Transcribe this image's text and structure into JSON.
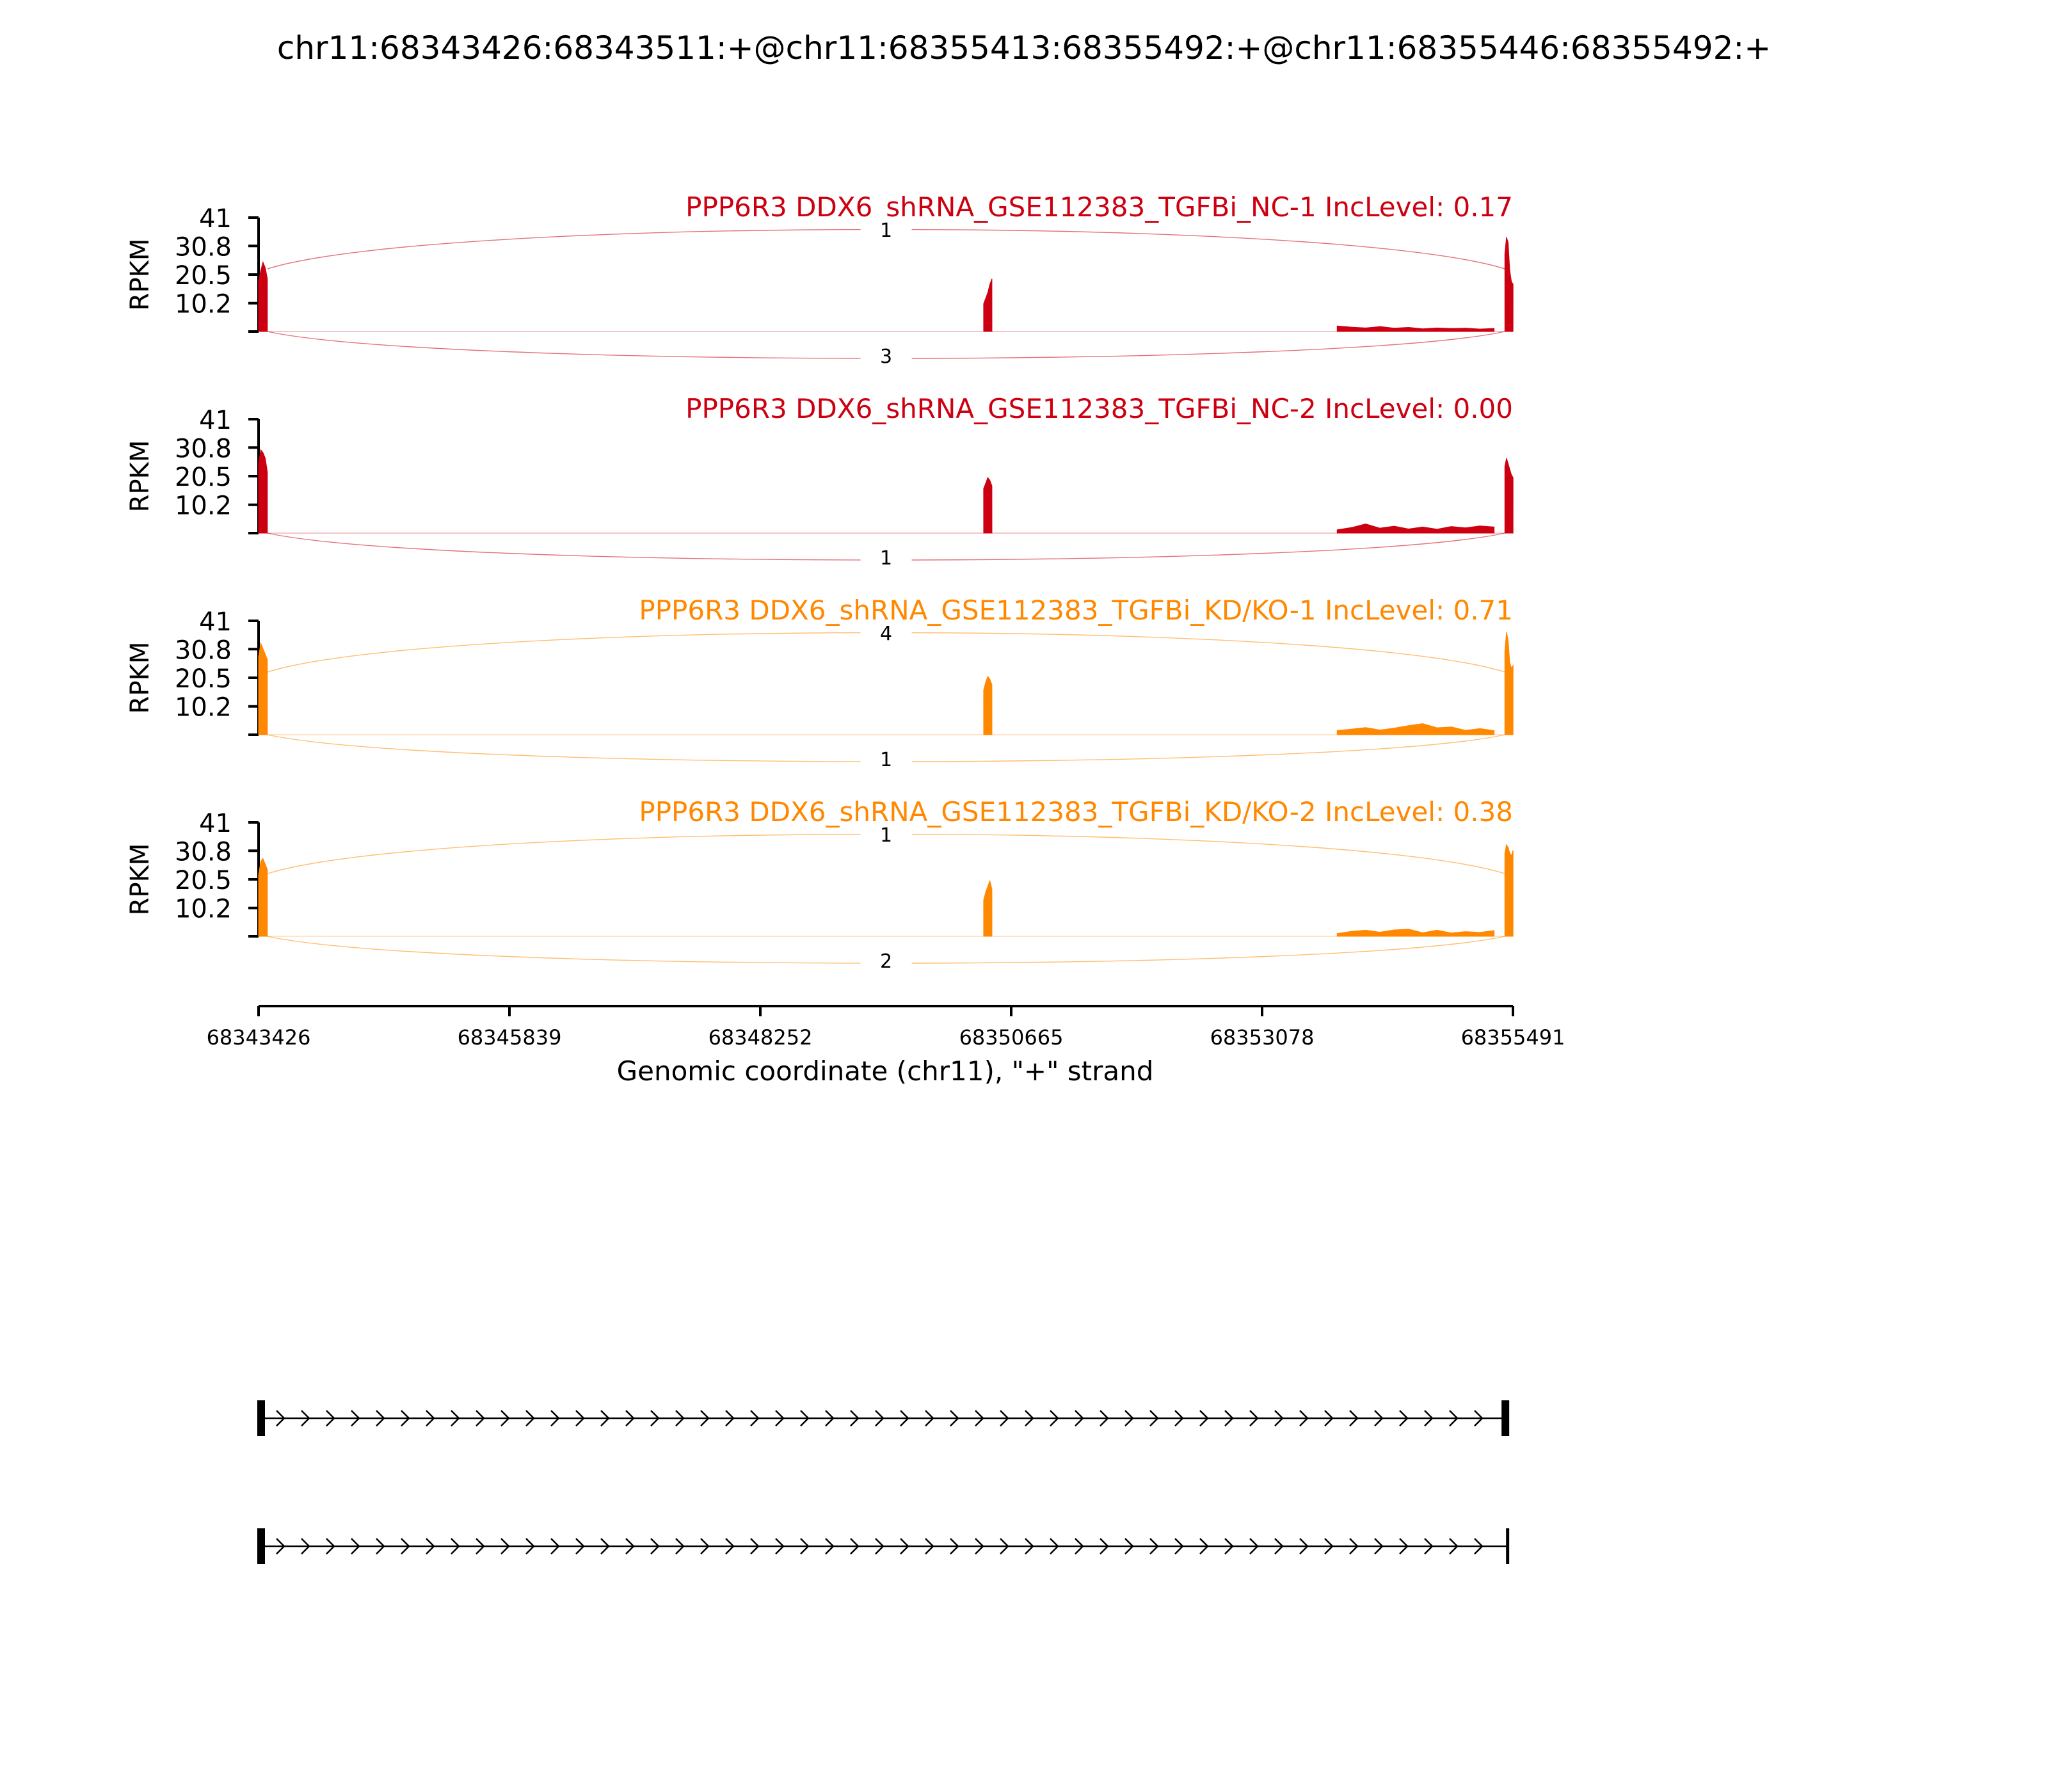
{
  "title": "chr11:68343426:68343511:+@chr11:68355413:68355492:+@chr11:68355446:68355492:+",
  "chart_data": {
    "type": "area",
    "tracks": [
      {
        "label": "PPP6R3 DDX6_shRNA_GSE112383_TGFBi_NC-1 IncLevel: 0.17",
        "color": "#cc0011",
        "group": "NC",
        "ylabel": "RPKM",
        "ylim": [
          0,
          41
        ],
        "yticks": [
          "41",
          "30.8",
          "20.5",
          "10.2"
        ],
        "junctions": {
          "upper": "1",
          "lower": "3"
        },
        "peaks": [
          {
            "x_start": 68343426,
            "x_end": 68343511,
            "values": [
              18,
              22,
              25,
              23,
              19
            ]
          },
          {
            "x_start": 68350400,
            "x_end": 68350480,
            "values": [
              10,
              12,
              14,
              17,
              19
            ]
          },
          {
            "x_start": 68353800,
            "x_end": 68355310,
            "values": [
              2,
              1.6,
              1.3,
              1.8,
              1.2,
              1.5,
              1,
              1.3,
              1.1,
              1.2,
              0.9,
              1.1
            ]
          },
          {
            "x_start": 68355413,
            "x_end": 68355492,
            "values": [
              28,
              34,
              32,
              22,
              18,
              17
            ]
          }
        ]
      },
      {
        "label": "PPP6R3 DDX6_shRNA_GSE112383_TGFBi_NC-2 IncLevel: 0.00",
        "color": "#cc0011",
        "group": "NC",
        "ylabel": "RPKM",
        "ylim": [
          0,
          41
        ],
        "yticks": [
          "41",
          "30.8",
          "20.5",
          "10.2"
        ],
        "junctions": {
          "upper": "",
          "lower": "1"
        },
        "peaks": [
          {
            "x_start": 68343426,
            "x_end": 68343511,
            "values": [
              25,
              30,
              29,
              27,
              22
            ]
          },
          {
            "x_start": 68350400,
            "x_end": 68350480,
            "values": [
              16,
              18,
              20,
              19,
              17
            ]
          },
          {
            "x_start": 68353800,
            "x_end": 68355310,
            "values": [
              1.2,
              2,
              3.3,
              1.8,
              2.5,
              1.5,
              2.2,
              1.4,
              2.4,
              1.9,
              2.6,
              2.2
            ]
          },
          {
            "x_start": 68355413,
            "x_end": 68355492,
            "values": [
              24,
              27,
              25,
              23,
              21,
              20
            ]
          }
        ]
      },
      {
        "label": "PPP6R3 DDX6_shRNA_GSE112383_TGFBi_KD/KO-1 IncLevel: 0.71",
        "color": "#ff8800",
        "group": "KD/KO",
        "ylabel": "RPKM",
        "ylim": [
          0,
          41
        ],
        "yticks": [
          "41",
          "30.8",
          "20.5",
          "10.2"
        ],
        "junctions": {
          "upper": "4",
          "lower": "1"
        },
        "peaks": [
          {
            "x_start": 68343426,
            "x_end": 68343511,
            "values": [
              28,
              33,
              31,
              29,
              27
            ]
          },
          {
            "x_start": 68350400,
            "x_end": 68350480,
            "values": [
              16,
              19,
              21,
              20,
              18
            ]
          },
          {
            "x_start": 68353800,
            "x_end": 68355310,
            "values": [
              1.5,
              2,
              2.6,
              1.7,
              2.4,
              3.3,
              4,
              2.5,
              2.8,
              1.6,
              2.2,
              1.5
            ]
          },
          {
            "x_start": 68355413,
            "x_end": 68355492,
            "values": [
              30,
              37,
              34,
              26,
              24,
              25
            ]
          }
        ]
      },
      {
        "label": "PPP6R3 DDX6_shRNA_GSE112383_TGFBi_KD/KO-2 IncLevel: 0.38",
        "color": "#ff8800",
        "group": "KD/KO",
        "ylabel": "RPKM",
        "ylim": [
          0,
          41
        ],
        "yticks": [
          "41",
          "30.8",
          "20.5",
          "10.2"
        ],
        "junctions": {
          "upper": "1",
          "lower": "2"
        },
        "peaks": [
          {
            "x_start": 68343426,
            "x_end": 68343511,
            "values": [
              22,
              27,
              28,
              26,
              24
            ]
          },
          {
            "x_start": 68350400,
            "x_end": 68350480,
            "values": [
              13,
              16,
              18,
              20,
              17
            ]
          },
          {
            "x_start": 68353800,
            "x_end": 68355310,
            "values": [
              1,
              1.8,
              2.2,
              1.5,
              2.3,
              2.6,
              1.3,
              2.2,
              1.2,
              1.7,
              1.4,
              2.1
            ]
          },
          {
            "x_start": 68355413,
            "x_end": 68355492,
            "values": [
              30,
              33,
              32,
              30,
              29,
              31
            ]
          }
        ]
      }
    ],
    "x_axis": {
      "label": "Genomic coordinate (chr11), \"+\" strand",
      "xlim": [
        68343426,
        68355491
      ],
      "ticks": [
        68343426,
        68345839,
        68348252,
        68350665,
        68353078,
        68355491
      ],
      "tick_labels": [
        "68343426",
        "68345839",
        "68348252",
        "68350665",
        "68353078",
        "68355491"
      ]
    },
    "isoforms": [
      {
        "exons": [
          [
            68343426,
            68343511
          ],
          [
            68355413,
            68355492
          ]
        ],
        "strand": "+"
      },
      {
        "exons": [
          [
            68343426,
            68343511
          ],
          [
            68355446,
            68355492
          ]
        ],
        "strand": "+"
      }
    ]
  }
}
